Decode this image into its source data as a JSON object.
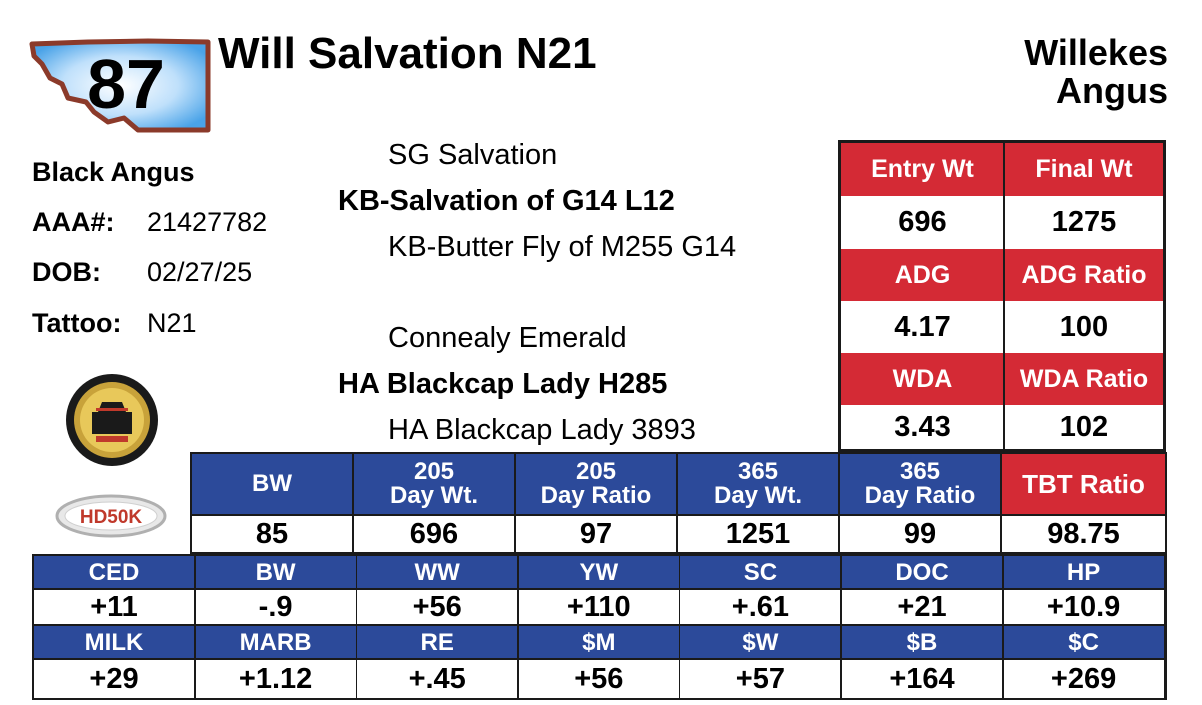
{
  "lot": {
    "number": "87"
  },
  "animal": {
    "name": "Will Salvation N21",
    "breed": "Black Angus"
  },
  "consignor": {
    "line1": "Willekes",
    "line2": "Angus"
  },
  "info": {
    "aaa_label": "AAA#:",
    "aaa_value": "21427782",
    "dob_label": "DOB:",
    "dob_value": "02/27/25",
    "tattoo_label": "Tattoo:",
    "tattoo_value": "N21"
  },
  "pedigree": {
    "sire_sire": "SG Salvation",
    "sire": "KB-Salvation of G14 L12",
    "sire_dam": "KB-Butter Fly of M255 G14",
    "dam_sire": "Connealy Emerald",
    "dam": "HA Blackcap Lady H285",
    "dam_dam": "HA Blackcap Lady 3893"
  },
  "performance": {
    "entry_wt_label": "Entry Wt",
    "final_wt_label": "Final Wt",
    "entry_wt": "696",
    "final_wt": "1275",
    "adg_label": "ADG",
    "adg_ratio_label": "ADG Ratio",
    "adg": "4.17",
    "adg_ratio": "100",
    "wda_label": "WDA",
    "wda_ratio_label": "WDA Ratio",
    "wda": "3.43",
    "wda_ratio": "102"
  },
  "weights": {
    "headers": [
      {
        "l1": "BW",
        "l2": ""
      },
      {
        "l1": "205",
        "l2": "Day Wt."
      },
      {
        "l1": "205",
        "l2": "Day Ratio"
      },
      {
        "l1": "365",
        "l2": "Day Wt."
      },
      {
        "l1": "365",
        "l2": "Day Ratio"
      }
    ],
    "tbt_label": "TBT Ratio",
    "values": [
      "85",
      "696",
      "97",
      "1251",
      "99"
    ],
    "tbt_value": "98.75"
  },
  "epds": {
    "row1_headers": [
      "CED",
      "BW",
      "WW",
      "YW",
      "SC",
      "DOC",
      "HP"
    ],
    "row1_values": [
      "+11",
      "-.9",
      "+56",
      "+110",
      "+.61",
      "+21",
      "+10.9"
    ],
    "row2_headers": [
      "MILK",
      "MARB",
      "RE",
      "$M",
      "$W",
      "$B",
      "$C"
    ],
    "row2_values": [
      "+29",
      "+1.12",
      "+.45",
      "+56",
      "+57",
      "+164",
      "+269"
    ]
  },
  "logos": {
    "hdsok_text": "HD50K"
  },
  "colors": {
    "red": "#d42a35",
    "blue": "#2c4a9a",
    "badge_blue": "#4aa3e8",
    "badge_border": "#8b3a2a"
  }
}
